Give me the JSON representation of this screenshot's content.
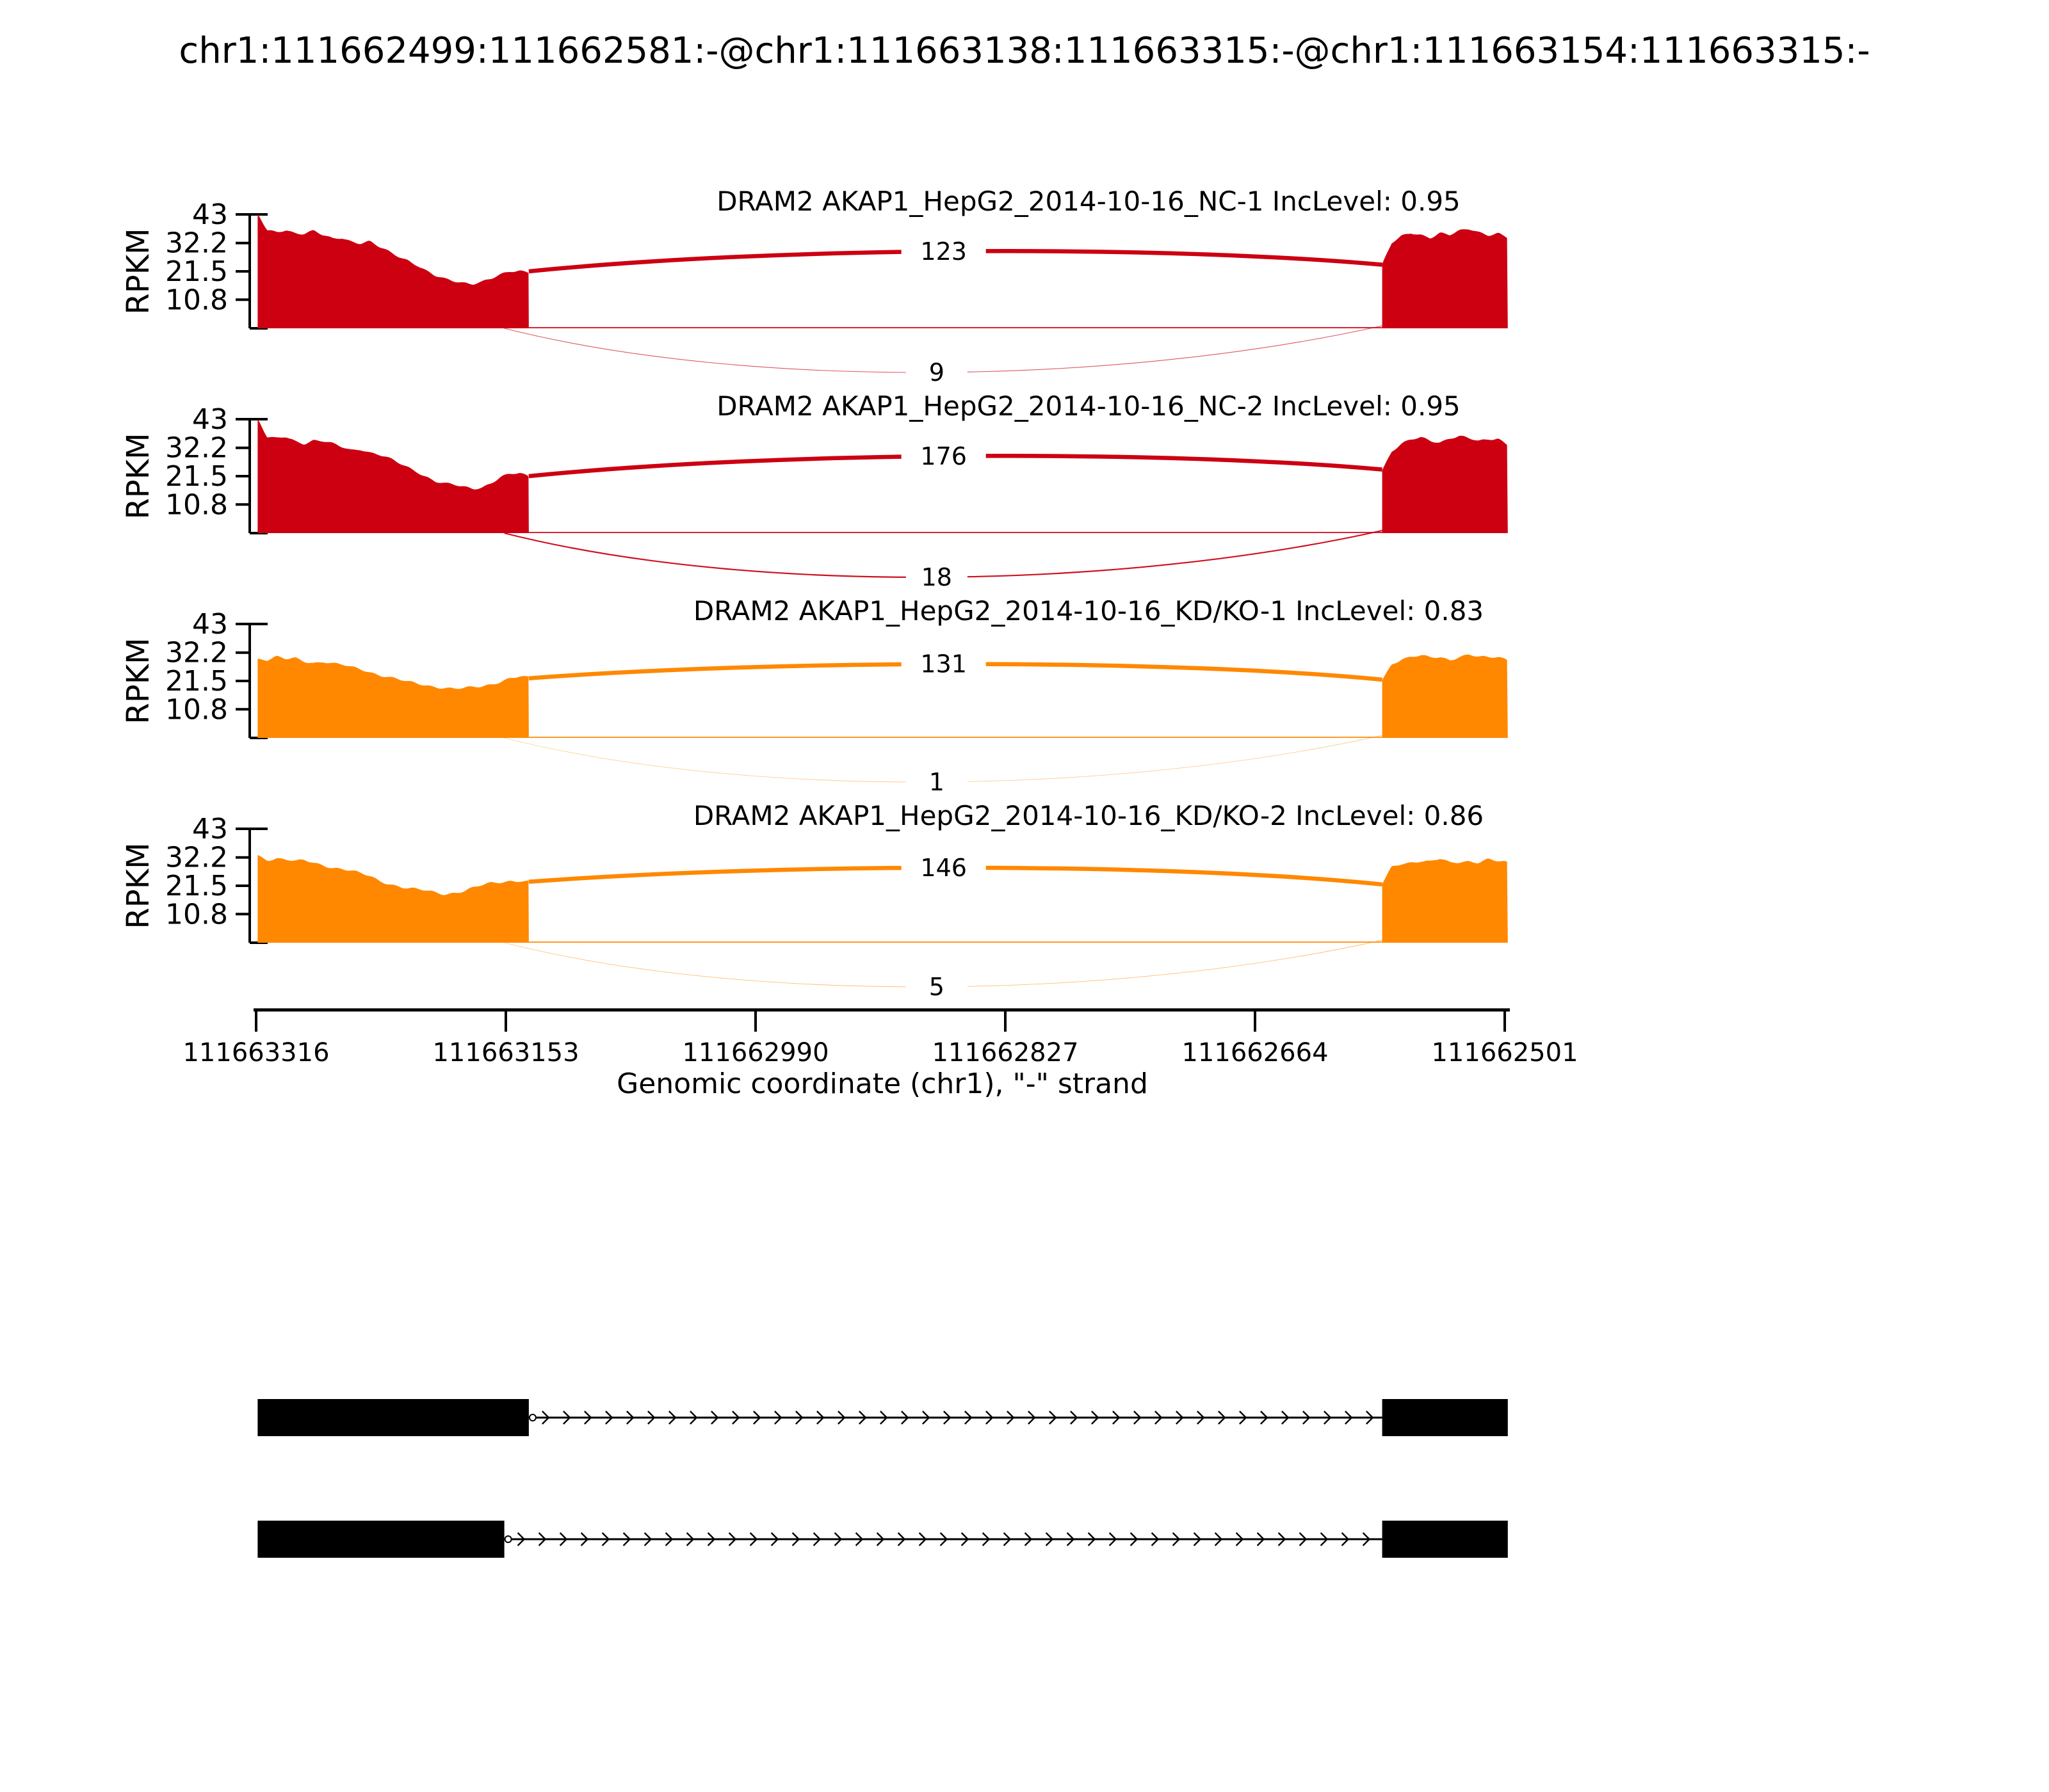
{
  "title": "chr1:111662499:111662581:-@chr1:111663138:111663315:-@chr1:111663154:111663315:-",
  "colors": {
    "control": "#CC0011",
    "knockdown": "#FF8800",
    "axis": "#000000",
    "background": "#FFFFFF"
  },
  "y_axis": {
    "label": "RPKM",
    "ticks": [
      "43",
      "32.2",
      "21.5",
      "10.8"
    ]
  },
  "x_axis": {
    "label": "Genomic coordinate (chr1), \"-\" strand",
    "ticks": [
      "111663316",
      "111663153",
      "111662990",
      "111662827",
      "111662664",
      "111662501"
    ]
  },
  "chart_data": {
    "type": "area",
    "subtype": "sashimi-plot",
    "chrom": "chr1",
    "strand": "-",
    "xlim": [
      111663316,
      111662501
    ],
    "ylim": [
      0,
      43
    ],
    "y_ticks": [
      43,
      32.2,
      21.5,
      10.8
    ],
    "x_ticks": [
      111663316,
      111663153,
      111662990,
      111662827,
      111662664,
      111662501
    ],
    "exon_boundaries": {
      "upstream_exon_start": 111663315,
      "long_exon_end": 111663138,
      "short_exon_end": 111663154,
      "downstream_exon_start": 111662581,
      "downstream_exon_end": 111662499
    },
    "tracks": [
      {
        "title": "DRAM2 AKAP1_HepG2_2014-10-16_NC-1 IncLevel: 0.95",
        "sample": "DRAM2 AKAP1_HepG2_2014-10-16_NC-1",
        "inc_level": 0.95,
        "color": "#CC0011",
        "junction_top_count": 123,
        "junction_bottom_count": 9,
        "left_coverage_rpkm": [
          43,
          37,
          36.5,
          37.5,
          36,
          35.5,
          36.5,
          35,
          34,
          34.5,
          33,
          32,
          32.5,
          30.5,
          29,
          27.5,
          26,
          24,
          21.5,
          19.5,
          18.5,
          18,
          17.5,
          17,
          17.5,
          18.5,
          20,
          21.5,
          22,
          21.5
        ],
        "right_coverage_rpkm": [
          24,
          32,
          34.5,
          36,
          35.5,
          34.5,
          36,
          35,
          36.5,
          37.5,
          36.5,
          35.5,
          36,
          34
        ]
      },
      {
        "title": "DRAM2 AKAP1_HepG2_2014-10-16_NC-2 IncLevel: 0.95",
        "sample": "DRAM2 AKAP1_HepG2_2014-10-16_NC-2",
        "inc_level": 0.95,
        "color": "#CC0011",
        "junction_top_count": 176,
        "junction_bottom_count": 18,
        "left_coverage_rpkm": [
          43,
          36,
          35.5,
          36.5,
          35,
          34,
          35,
          34.5,
          33.5,
          32.5,
          31.5,
          32,
          30.5,
          29.5,
          28,
          26.5,
          25,
          23.5,
          21.5,
          19.5,
          18.5,
          18,
          17.5,
          17,
          17.5,
          19,
          21,
          22,
          22.5,
          21.5
        ],
        "right_coverage_rpkm": [
          24,
          31,
          33.5,
          35,
          36,
          35,
          34.5,
          36,
          36.5,
          35.5,
          34.5,
          35.5,
          36,
          33.5
        ]
      },
      {
        "title": "DRAM2 AKAP1_HepG2_2014-10-16_KD/KO-1 IncLevel: 0.83",
        "sample": "DRAM2 AKAP1_HepG2_2014-10-16_KD/KO-1",
        "inc_level": 0.83,
        "color": "#FF8800",
        "junction_top_count": 131,
        "junction_bottom_count": 1,
        "left_coverage_rpkm": [
          30,
          29.5,
          30.5,
          29.5,
          30,
          29,
          28.5,
          29,
          28,
          27.5,
          26.5,
          26,
          25,
          24,
          23,
          22,
          21,
          20.5,
          20,
          19.5,
          19,
          18.5,
          18.5,
          19,
          19.5,
          20.5,
          21.5,
          22.5,
          23,
          22.5
        ],
        "right_coverage_rpkm": [
          22,
          28,
          30,
          30.5,
          31,
          30,
          30.5,
          29.5,
          31,
          31.5,
          30.5,
          30,
          30.5,
          29.5
        ]
      },
      {
        "title": "DRAM2 AKAP1_HepG2_2014-10-16_KD/KO-2 IncLevel: 0.86",
        "sample": "DRAM2 AKAP1_HepG2_2014-10-16_KD/KO-2",
        "inc_level": 0.86,
        "color": "#FF8800",
        "junction_top_count": 146,
        "junction_bottom_count": 5,
        "left_coverage_rpkm": [
          33,
          31.5,
          32,
          31.5,
          30.5,
          31,
          30,
          29.5,
          28.5,
          28,
          27,
          26,
          25,
          23.5,
          22.5,
          21.5,
          20.5,
          20,
          19.5,
          19,
          18.5,
          19,
          19.5,
          20.5,
          21.5,
          22.5,
          23,
          23.5,
          23.5,
          23
        ],
        "right_coverage_rpkm": [
          22,
          28.5,
          30,
          30.5,
          31,
          30.5,
          31.5,
          30,
          30.5,
          31,
          30.5,
          31.5,
          30.5,
          30
        ]
      }
    ],
    "transcripts": [
      {
        "exons": [
          [
            111663315,
            111663138
          ],
          [
            111662581,
            111662499
          ]
        ]
      },
      {
        "exons": [
          [
            111663315,
            111663154
          ],
          [
            111662581,
            111662499
          ]
        ]
      }
    ]
  }
}
